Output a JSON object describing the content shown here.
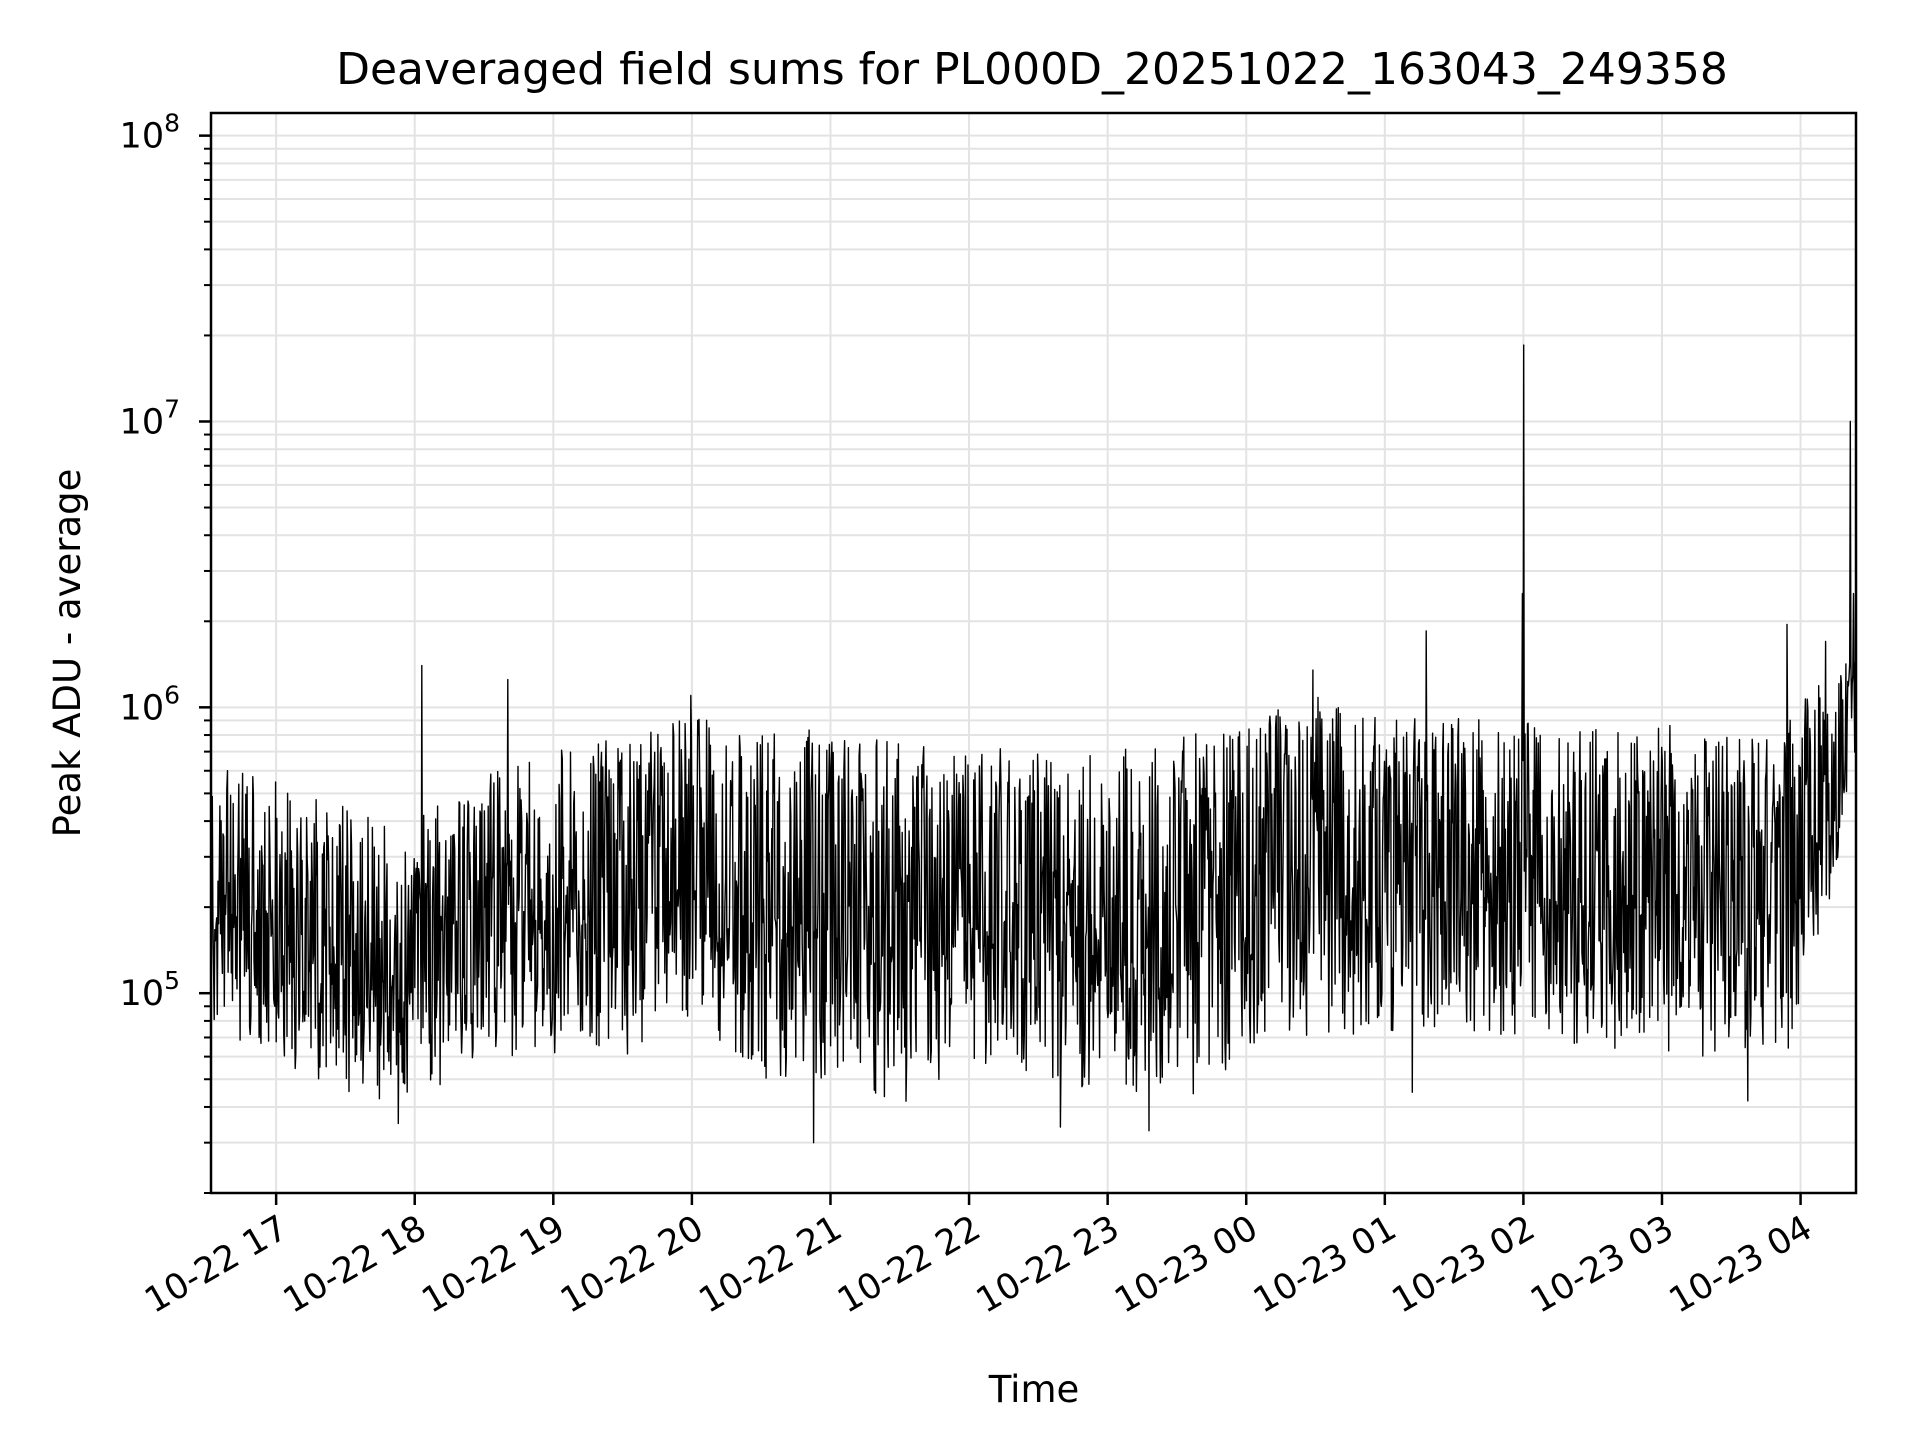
{
  "chart_data": {
    "type": "line",
    "title": "Deaveraged field sums for PL000D_20251022_163043_249358",
    "xlabel": "Time",
    "ylabel": "Peak ADU - average",
    "yscale": "log",
    "ylim": [
      20000,
      120000000
    ],
    "xlim_hours": [
      16.53,
      28.4
    ],
    "x_tick_labels": [
      "10-22 17",
      "10-22 18",
      "10-22 19",
      "10-22 20",
      "10-22 21",
      "10-22 22",
      "10-22 23",
      "10-23 00",
      "10-23 01",
      "10-23 02",
      "10-23 03",
      "10-23 04"
    ],
    "x_tick_hours": [
      17,
      18,
      19,
      20,
      21,
      22,
      23,
      24,
      25,
      26,
      27,
      28
    ],
    "y_ticks": [
      {
        "base": "10",
        "exp": "5",
        "value": 100000
      },
      {
        "base": "10",
        "exp": "6",
        "value": 1000000
      },
      {
        "base": "10",
        "exp": "7",
        "value": 10000000
      },
      {
        "base": "10",
        "exp": "8",
        "value": 100000000
      }
    ],
    "grid": true,
    "series": [
      {
        "name": "field sums",
        "color": "#000000",
        "envelope_hours": [
          16.53,
          17.0,
          17.5,
          18.0,
          18.5,
          19.0,
          19.5,
          20.0,
          20.5,
          21.0,
          21.5,
          22.0,
          22.5,
          23.0,
          23.5,
          24.0,
          24.5,
          25.0,
          25.5,
          26.0,
          26.5,
          27.0,
          27.5,
          27.9,
          28.2,
          28.4
        ],
        "envelope_high": [
          650000,
          550000,
          450000,
          400000,
          600000,
          700000,
          800000,
          950000,
          800000,
          850000,
          750000,
          750000,
          700000,
          700000,
          800000,
          900000,
          1100000,
          900000,
          950000,
          900000,
          850000,
          900000,
          850000,
          950000,
          1300000,
          1500000
        ],
        "envelope_low": [
          80000,
          55000,
          45000,
          40000,
          60000,
          60000,
          60000,
          80000,
          50000,
          50000,
          40000,
          55000,
          50000,
          45000,
          40000,
          60000,
          70000,
          70000,
          75000,
          70000,
          65000,
          60000,
          60000,
          55000,
          200000,
          600000
        ],
        "spikes": [
          {
            "hour": 18.05,
            "value": 1400000
          },
          {
            "hour": 18.67,
            "value": 1250000
          },
          {
            "hour": 19.99,
            "value": 1100000
          },
          {
            "hour": 24.48,
            "value": 1350000
          },
          {
            "hour": 25.3,
            "value": 1850000
          },
          {
            "hour": 25.995,
            "value": 2500000
          },
          {
            "hour": 26.0,
            "value": 18500000
          },
          {
            "hour": 27.9,
            "value": 1950000
          },
          {
            "hour": 28.18,
            "value": 1700000
          },
          {
            "hour": 28.36,
            "value": 10000000
          },
          {
            "hour": 28.38,
            "value": 2500000
          }
        ],
        "dips": [
          {
            "hour": 17.88,
            "value": 35000
          },
          {
            "hour": 20.88,
            "value": 30000
          },
          {
            "hour": 22.66,
            "value": 34000
          },
          {
            "hour": 23.3,
            "value": 33000
          },
          {
            "hour": 25.2,
            "value": 45000
          },
          {
            "hour": 27.62,
            "value": 42000
          }
        ]
      }
    ]
  }
}
